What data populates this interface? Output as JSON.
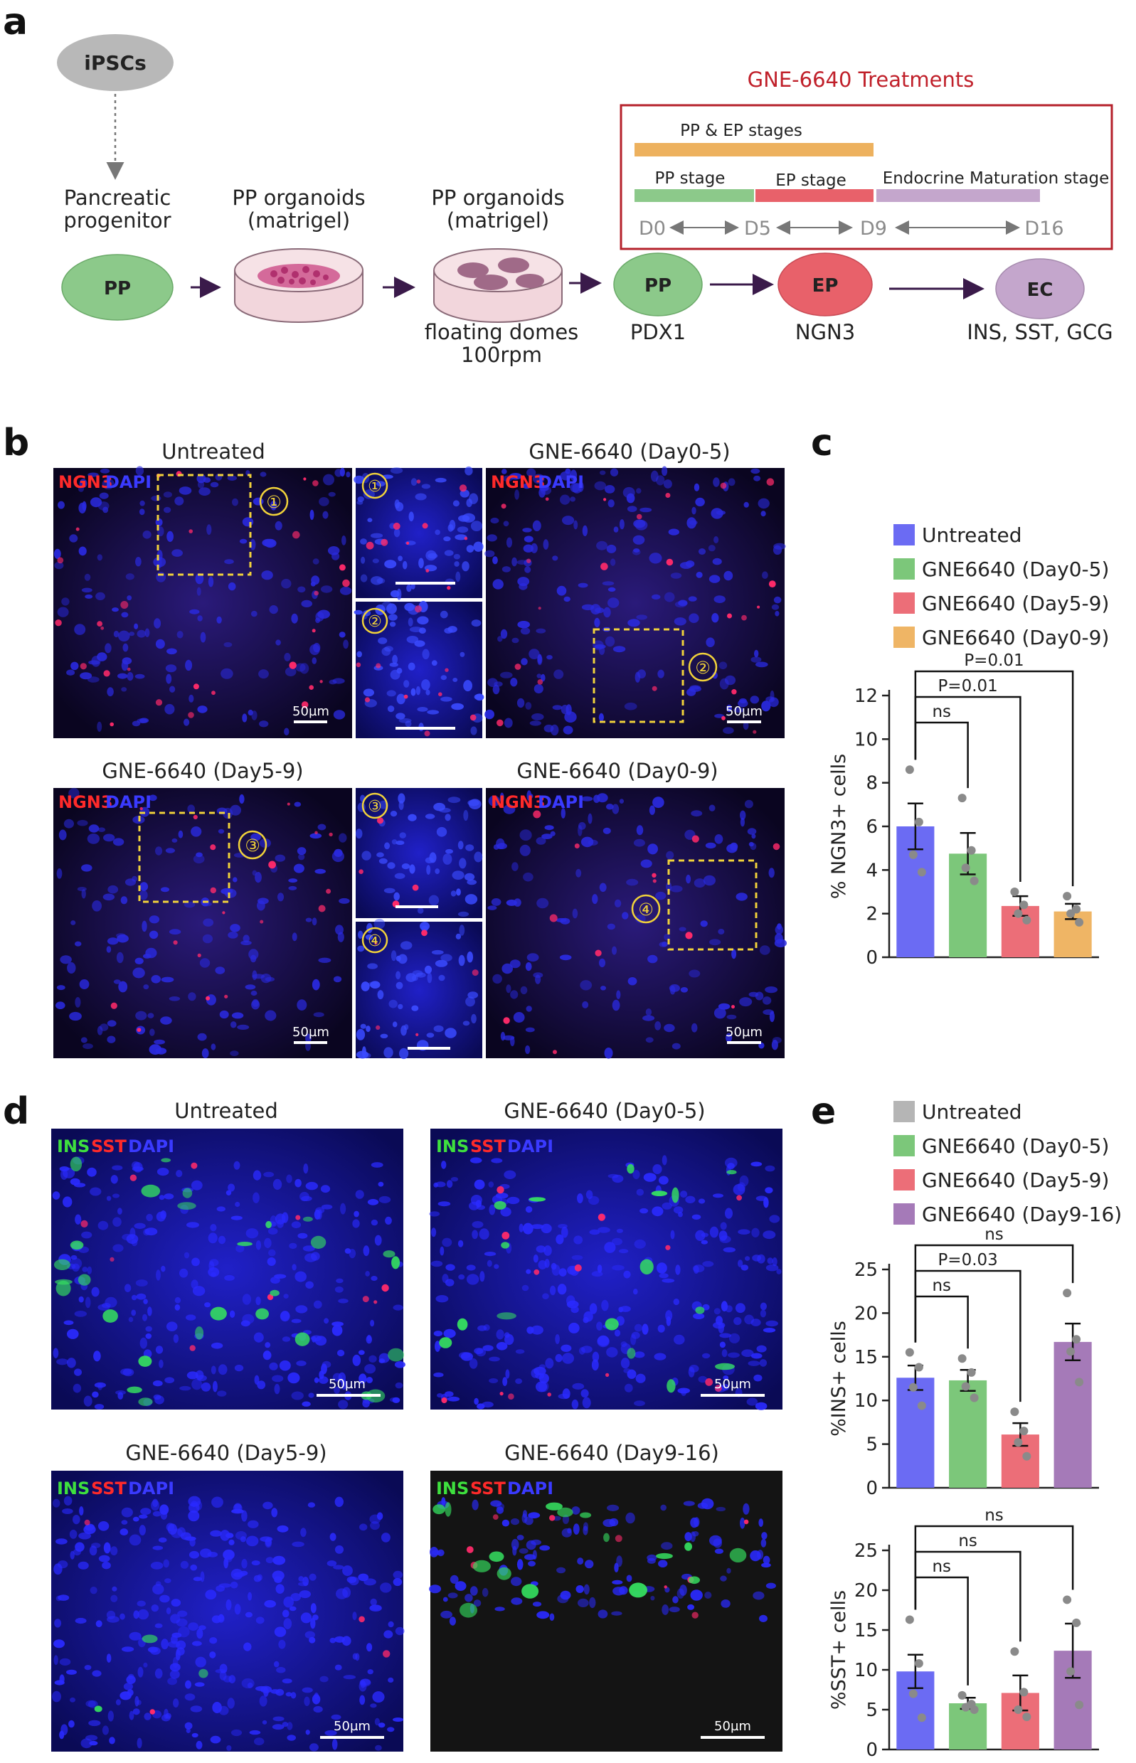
{
  "panels": {
    "a": "a",
    "b": "b",
    "c": "c",
    "d": "d",
    "e": "e"
  },
  "diagram": {
    "ipsc_label": "iPSCs",
    "pp_caption_1": "Pancreatic",
    "pp_caption_2": "progenitor",
    "org1_caption_1": "PP organoids",
    "org1_caption_2": "(matrigel)",
    "org2_caption_1": "PP organoids",
    "org2_caption_2": "(matrigel)",
    "org2_sub_1": "floating domes",
    "org2_sub_2": "100rpm",
    "pp_label": "PP",
    "pp2_label": "PP",
    "ep_label": "EP",
    "ec_label": "EC",
    "pp_marker": "PDX1",
    "ep_marker": "NGN3",
    "ec_marker": "INS, SST, GCG",
    "treat_title": "GNE-6640 Treatments",
    "bar_pp_ep": "PP & EP stages",
    "bar_pp": "PP stage",
    "bar_ep": "EP stage",
    "bar_em": "Endocrine Maturation stage",
    "d0": "D0",
    "d5": "D5",
    "d9": "D9",
    "d16": "D16",
    "colors": {
      "pp": "#8cc98a",
      "ep": "#e8616a",
      "ec": "#c4a6cc",
      "ipsc": "#b8b8b8",
      "orange": "#edb15e",
      "border": "#b5212b"
    }
  },
  "panel_b": {
    "titles": [
      "Untreated",
      "GNE-6640 (Day0-5)",
      "GNE-6640 (Day5-9)",
      "GNE-6640 (Day0-9)"
    ],
    "stain_ngn3": "NGN3",
    "stain_dapi": "DAPI",
    "scale": "50µm",
    "roi": [
      "①",
      "②",
      "③",
      "④"
    ]
  },
  "panel_d": {
    "titles": [
      "Untreated",
      "GNE-6640 (Day0-5)",
      "GNE-6640 (Day5-9)",
      "GNE-6640 (Day9-16)"
    ],
    "stain_ins": "INS",
    "stain_sst": "SST",
    "stain_dapi": "DAPI",
    "scale": "50µm"
  },
  "chart_data": [
    {
      "type": "bar",
      "panel": "c",
      "categories": [
        "Untreated",
        "GNE6640 (Day0-5)",
        "GNE6640 (Day5-9)",
        "GNE6640 (Day0-9)"
      ],
      "legend": [
        "Untreated",
        "GNE6640 (Day0-5)",
        "GNE6640 (Day5-9)",
        "GNE6640 (Day0-9)"
      ],
      "colors": [
        "#6b6bf3",
        "#7cc77a",
        "#ec6e78",
        "#efb565"
      ],
      "values": [
        6.0,
        4.75,
        2.35,
        2.1
      ],
      "sem": [
        1.05,
        0.95,
        0.45,
        0.35
      ],
      "points": [
        [
          8.6,
          6.2,
          4.7,
          3.9
        ],
        [
          7.3,
          4.9,
          4.1,
          3.5
        ],
        [
          3.0,
          2.4,
          2.0,
          1.7
        ],
        [
          2.8,
          2.2,
          2.0,
          1.6
        ]
      ],
      "ylabel": "% NGN3+ cells",
      "ylim": [
        0,
        12
      ],
      "yticks": [
        0,
        2,
        4,
        6,
        8,
        10,
        12
      ],
      "comparisons": [
        {
          "from": 0,
          "to": 1,
          "label": "ns"
        },
        {
          "from": 0,
          "to": 2,
          "label": "P=0.01"
        },
        {
          "from": 0,
          "to": 3,
          "label": "P=0.01"
        }
      ]
    },
    {
      "type": "bar",
      "panel": "e",
      "categories": [
        "Untreated",
        "GNE6640 (Day0-5)",
        "GNE6640 (Day5-9)",
        "GNE6640 (Day9-16)"
      ],
      "legend": [
        "Untreated",
        "GNE6640 (Day0-5)",
        "GNE6640 (Day5-9)",
        "GNE6640 (Day9-16)"
      ],
      "legend_colors": [
        "#b5b5b5",
        "#7cc77a",
        "#ec6e78",
        "#a57ab8"
      ],
      "colors": [
        "#6b6bf3",
        "#7cc77a",
        "#ec6e78",
        "#a57ab8"
      ],
      "values": [
        12.6,
        12.3,
        6.1,
        16.7
      ],
      "sem": [
        1.4,
        1.2,
        1.3,
        2.1
      ],
      "points": [
        [
          15.5,
          13.8,
          11.5,
          9.4
        ],
        [
          14.8,
          13.2,
          11.6,
          10.3
        ],
        [
          8.7,
          6.5,
          5.2,
          3.6
        ],
        [
          22.3,
          17.0,
          15.6,
          12.1
        ]
      ],
      "ylabel": "%INS+ cells",
      "ylim": [
        0,
        25
      ],
      "yticks": [
        0,
        5,
        10,
        15,
        20,
        25
      ],
      "comparisons": [
        {
          "from": 0,
          "to": 1,
          "label": "ns"
        },
        {
          "from": 0,
          "to": 2,
          "label": "P=0.03"
        },
        {
          "from": 0,
          "to": 3,
          "label": "ns"
        }
      ]
    },
    {
      "type": "bar",
      "panel": "e",
      "categories": [
        "Untreated",
        "GNE6640 (Day0-5)",
        "GNE6640 (Day5-9)",
        "GNE6640 (Day9-16)"
      ],
      "colors": [
        "#6b6bf3",
        "#7cc77a",
        "#ec6e78",
        "#a57ab8"
      ],
      "values": [
        9.8,
        5.8,
        7.1,
        12.4
      ],
      "sem": [
        2.1,
        0.7,
        2.2,
        3.4
      ],
      "points": [
        [
          16.3,
          10.8,
          7.0,
          4.0
        ],
        [
          6.8,
          5.7,
          5.3,
          5.0
        ],
        [
          12.3,
          7.2,
          5.0,
          4.1
        ],
        [
          18.8,
          15.9,
          9.8,
          5.6
        ]
      ],
      "ylabel": "%SST+ cells",
      "ylim": [
        0,
        25
      ],
      "yticks": [
        0,
        5,
        10,
        15,
        20,
        25
      ],
      "comparisons": [
        {
          "from": 0,
          "to": 1,
          "label": "ns"
        },
        {
          "from": 0,
          "to": 2,
          "label": "ns"
        },
        {
          "from": 0,
          "to": 3,
          "label": "ns"
        }
      ]
    }
  ]
}
